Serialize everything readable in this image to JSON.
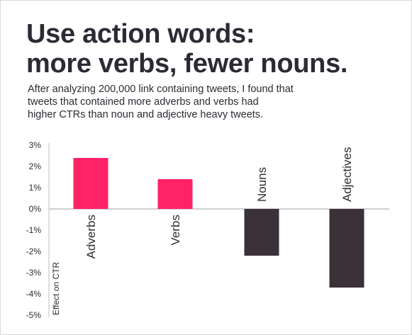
{
  "title_lines": [
    "Use action words:",
    "more verbs, fewer nouns."
  ],
  "subtitle_lines": [
    "After analyzing 200,000 link containing tweets, I found that",
    "tweets that contained more adverbs and verbs had",
    "higher CTRs than noun and adjective heavy tweets."
  ],
  "colors": {
    "positive": "#ff2266",
    "negative": "#3a3139",
    "axis": "#bdbdbd",
    "text": "#2e2a33"
  },
  "chart_data": {
    "type": "bar",
    "title": "Use action words: more verbs, fewer nouns.",
    "ylabel": "Effect on CTR",
    "xlabel": "",
    "categories": [
      "Adverbs",
      "Verbs",
      "Nouns",
      "Adjectives"
    ],
    "values": [
      2.4,
      1.4,
      -2.2,
      -3.7
    ],
    "ylim": [
      -5,
      3
    ],
    "yticks": [
      3,
      2,
      1,
      0,
      -1,
      -2,
      -3,
      -4,
      -5
    ],
    "ytick_labels": [
      "3%",
      "2%",
      "1%",
      "0%",
      "-1%",
      "-2%",
      "-3%",
      "-4%",
      "-5%"
    ],
    "grid": false,
    "legend": "none"
  }
}
